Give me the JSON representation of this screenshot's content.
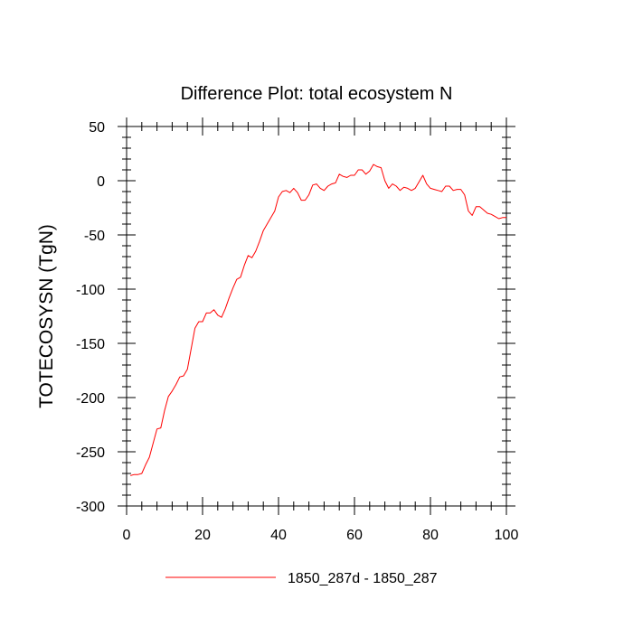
{
  "chart_data": {
    "type": "line",
    "title": "Difference Plot: total ecosystem N",
    "xlabel": "",
    "ylabel": "TOTECOSYSN  (TgN)",
    "xlim": [
      0,
      100
    ],
    "ylim": [
      -300,
      50
    ],
    "xticks": [
      0,
      20,
      40,
      60,
      80,
      100
    ],
    "yticks": [
      50,
      0,
      -50,
      -100,
      -150,
      -200,
      -250,
      -300
    ],
    "grid": false,
    "legend": "bottom-center",
    "series": [
      {
        "name": "1850_287d - 1850_287",
        "color": "#ff0000",
        "x": [
          1,
          2,
          3,
          4,
          5,
          6,
          7,
          8,
          9,
          10,
          11,
          12,
          13,
          14,
          15,
          16,
          17,
          18,
          19,
          20,
          21,
          22,
          23,
          24,
          25,
          26,
          27,
          28,
          29,
          30,
          31,
          32,
          33,
          34,
          35,
          36,
          37,
          38,
          39,
          40,
          41,
          42,
          43,
          44,
          45,
          46,
          47,
          48,
          49,
          50,
          51,
          52,
          53,
          54,
          55,
          56,
          57,
          58,
          59,
          60,
          61,
          62,
          63,
          64,
          65,
          66,
          67,
          68,
          69,
          70,
          71,
          72,
          73,
          74,
          75,
          76,
          77,
          78,
          79,
          80,
          81,
          82,
          83,
          84,
          85,
          86,
          87,
          88,
          89,
          90,
          91,
          92,
          93,
          94,
          95,
          96,
          97,
          98,
          99,
          100
        ],
        "values": [
          -272,
          -271,
          -271,
          -270,
          -262,
          -255,
          -242,
          -229,
          -228,
          -212,
          -199,
          -194,
          -188,
          -181,
          -180,
          -174,
          -155,
          -136,
          -130,
          -130,
          -122,
          -122,
          -119,
          -124,
          -126,
          -118,
          -108,
          -99,
          -91,
          -89,
          -78,
          -69,
          -71,
          -65,
          -56,
          -46,
          -40,
          -34,
          -28,
          -15,
          -10,
          -9,
          -11,
          -7,
          -11,
          -18,
          -18,
          -13,
          -4,
          -3,
          -7,
          -9,
          -5,
          -3,
          -2,
          6,
          4,
          3,
          5,
          5,
          10,
          10,
          6,
          9,
          15,
          13,
          12,
          0,
          -7,
          -3,
          -5,
          -9,
          -6,
          -7,
          -9,
          -7,
          -1,
          5,
          -3,
          -7,
          -8,
          -9,
          -10,
          -5,
          -5,
          -9,
          -8,
          -8,
          -13,
          -28,
          -32,
          -24,
          -24,
          -27,
          -30,
          -31,
          -33,
          -35,
          -34,
          -34
        ]
      }
    ]
  }
}
